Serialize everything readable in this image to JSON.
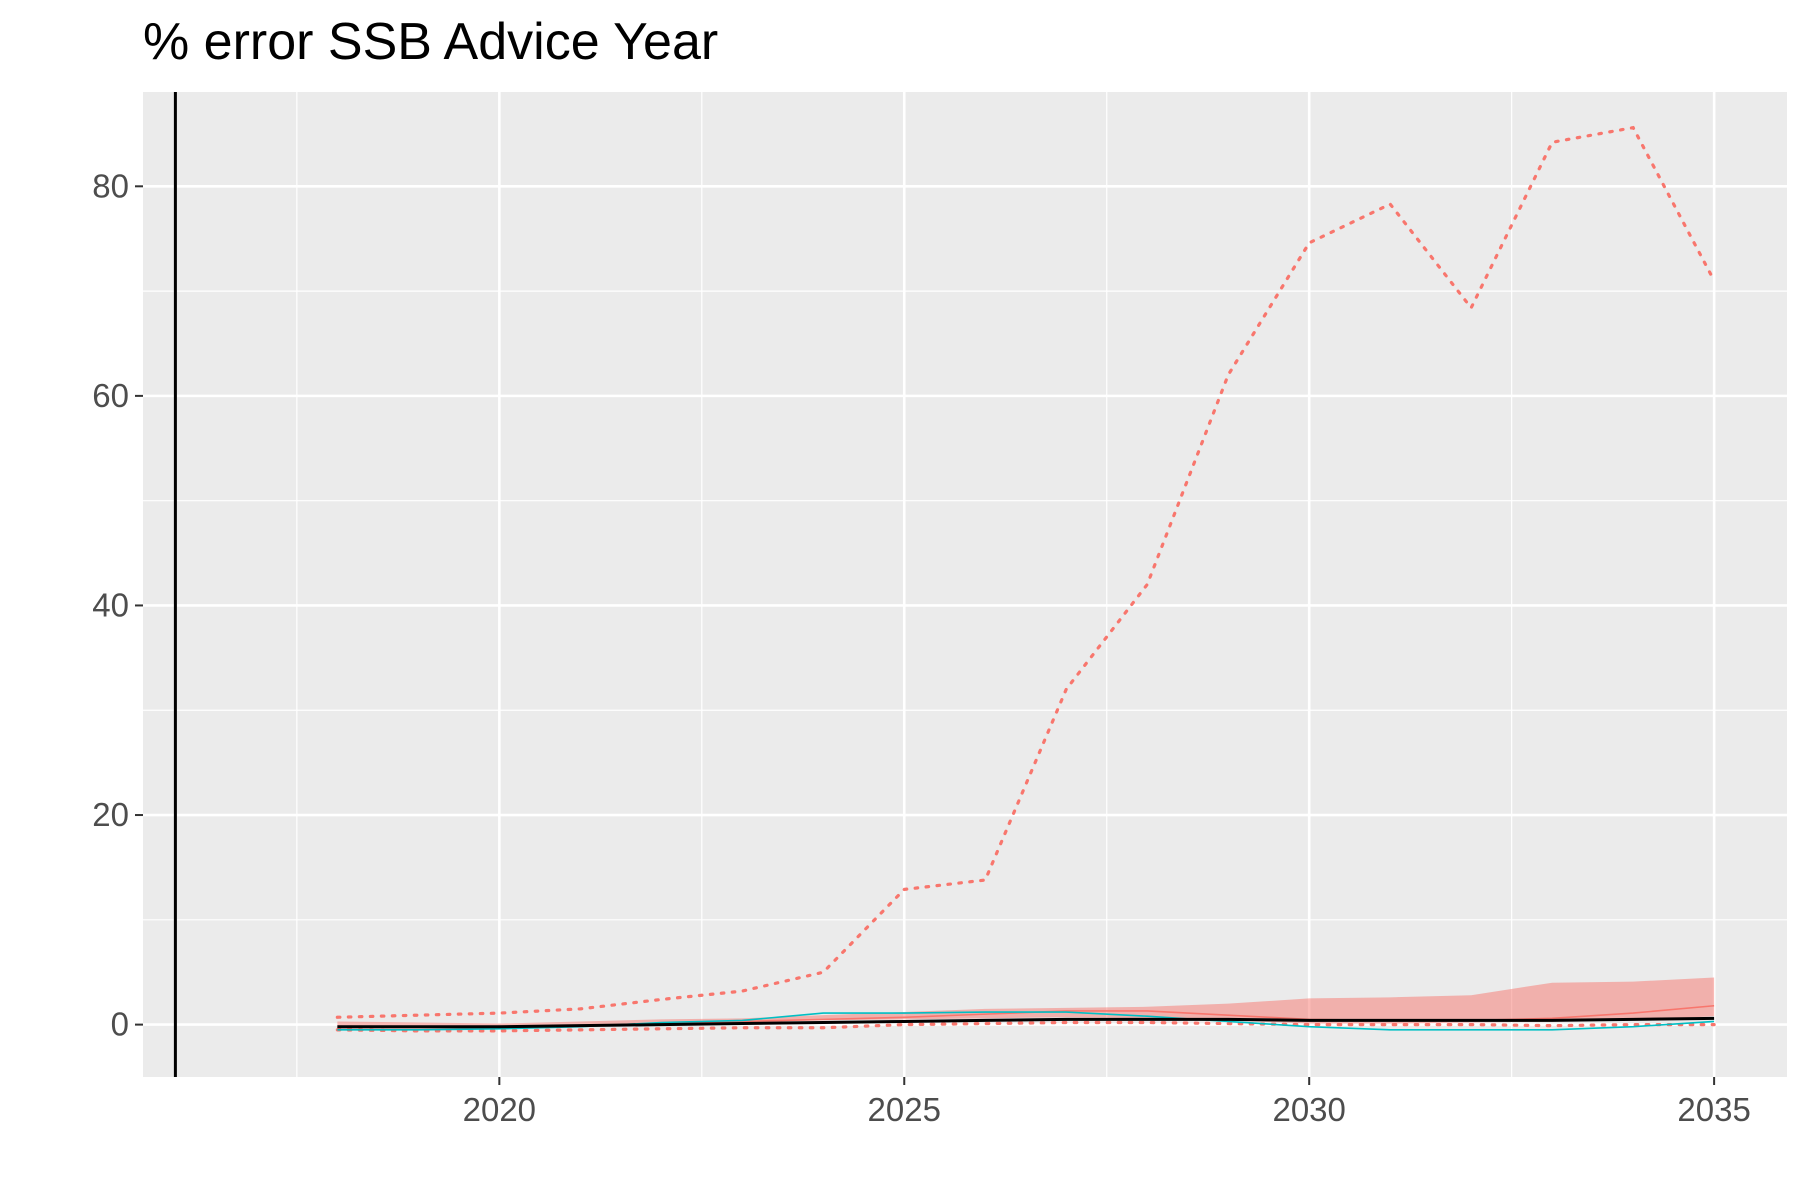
{
  "chart_data": {
    "type": "line",
    "title": "% error SSB Advice Year",
    "xlabel": "",
    "ylabel": "",
    "xlim": [
      2015.6,
      2035.9
    ],
    "ylim": [
      -5,
      89
    ],
    "x_ticks": [
      2020,
      2025,
      2030,
      2035
    ],
    "y_ticks": [
      0,
      20,
      40,
      60,
      80
    ],
    "grid": true,
    "legend": "none",
    "vline_x": 2016,
    "colors": {
      "red": "#F8766D",
      "teal": "#00BFC4",
      "black": "#000000",
      "ribbon": "#F8766D"
    },
    "ribbon": {
      "x": [
        2018,
        2019,
        2020,
        2021,
        2022,
        2023,
        2024,
        2025,
        2026,
        2027,
        2028,
        2029,
        2030,
        2031,
        2032,
        2033,
        2034,
        2035
      ],
      "lower": [
        -0.4,
        -0.3,
        -0.2,
        0.0,
        0.1,
        0.2,
        0.4,
        0.5,
        0.6,
        0.7,
        0.6,
        0.4,
        0.1,
        0.1,
        0.2,
        0.3,
        0.4,
        0.8
      ],
      "upper": [
        0.3,
        0.2,
        0.1,
        0.3,
        0.5,
        0.6,
        0.9,
        1.2,
        1.5,
        1.6,
        1.7,
        2.0,
        2.5,
        2.6,
        2.8,
        4.0,
        4.1,
        4.5
      ]
    },
    "series": [
      {
        "style": "dotted",
        "color": "#F8766D",
        "x": [
          2018,
          2019,
          2020,
          2021,
          2022,
          2023,
          2024,
          2025,
          2026,
          2027,
          2028,
          2029,
          2030,
          2031,
          2032,
          2033,
          2034,
          2035
        ],
        "values": [
          0.7,
          0.9,
          1.1,
          1.5,
          2.4,
          3.2,
          5.0,
          12.9,
          13.8,
          32.0,
          42.0,
          62.0,
          74.6,
          78.3,
          68.4,
          84.2,
          85.6,
          71.0
        ]
      },
      {
        "style": "dotted",
        "color": "#F8766D",
        "x": [
          2018,
          2019,
          2020,
          2021,
          2022,
          2023,
          2024,
          2025,
          2026,
          2027,
          2028,
          2029,
          2030,
          2031,
          2032,
          2033,
          2034,
          2035
        ],
        "values": [
          -0.5,
          -0.6,
          -0.6,
          -0.5,
          -0.4,
          -0.3,
          -0.3,
          0.0,
          0.1,
          0.2,
          0.2,
          0.1,
          0.0,
          0.0,
          0.0,
          -0.1,
          0.0,
          0.0
        ]
      },
      {
        "style": "solid",
        "color": "#F8766D",
        "x": [
          2018,
          2019,
          2020,
          2021,
          2022,
          2023,
          2024,
          2025,
          2026,
          2027,
          2028,
          2029,
          2030,
          2031,
          2032,
          2033,
          2034,
          2035
        ],
        "values": [
          -0.3,
          -0.3,
          -0.3,
          -0.1,
          0.1,
          0.3,
          0.5,
          0.7,
          1.0,
          1.3,
          1.3,
          0.9,
          0.5,
          0.4,
          0.4,
          0.6,
          1.1,
          1.8
        ]
      },
      {
        "style": "solid",
        "color": "#00BFC4",
        "x": [
          2018,
          2019,
          2020,
          2021,
          2022,
          2023,
          2024,
          2025,
          2026,
          2027,
          2028,
          2029,
          2030,
          2031,
          2032,
          2033,
          2034,
          2035
        ],
        "values": [
          -0.5,
          -0.5,
          -0.4,
          -0.2,
          0.2,
          0.4,
          1.1,
          1.1,
          1.2,
          1.2,
          0.8,
          0.3,
          -0.2,
          -0.5,
          -0.5,
          -0.5,
          -0.2,
          0.3
        ]
      },
      {
        "style": "solid",
        "color": "#000000",
        "width": 3,
        "x": [
          2018,
          2019,
          2020,
          2021,
          2022,
          2023,
          2024,
          2025,
          2026,
          2027,
          2028,
          2029,
          2030,
          2031,
          2032,
          2033,
          2034,
          2035
        ],
        "values": [
          -0.2,
          -0.2,
          -0.2,
          -0.1,
          0.0,
          0.1,
          0.2,
          0.3,
          0.4,
          0.5,
          0.5,
          0.5,
          0.4,
          0.4,
          0.4,
          0.4,
          0.5,
          0.6
        ]
      }
    ]
  }
}
